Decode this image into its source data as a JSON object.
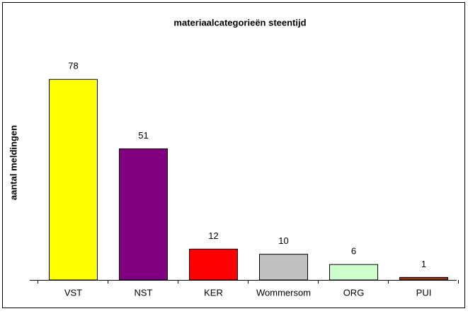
{
  "chart_data": {
    "type": "bar",
    "title": "materiaalcategorieën steentijd",
    "y_label": "aantal meldingen",
    "categories": [
      "VST",
      "NST",
      "KER",
      "Wommersom",
      "ORG",
      "PUI"
    ],
    "values": [
      78,
      51,
      12,
      10,
      6,
      1
    ],
    "colors": [
      "#ffff00",
      "#800080",
      "#ff0000",
      "#c0c0c0",
      "#ccffcc",
      "#993300"
    ],
    "ylim": [
      0,
      80
    ],
    "grid": false
  }
}
